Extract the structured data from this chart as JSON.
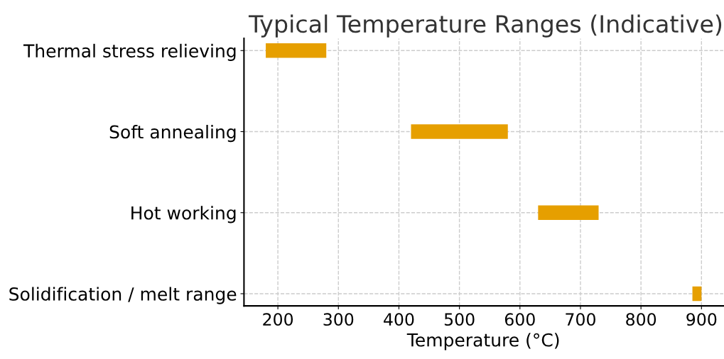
{
  "chart_data": {
    "type": "bar",
    "orientation": "horizontal",
    "title": "Typical Temperature Ranges (Indicative)",
    "xlabel": "Temperature (°C)",
    "categories": [
      "Thermal stress relieving",
      "Soft annealing",
      "Hot working",
      "Solidification / melt range"
    ],
    "base": [
      180,
      420,
      630,
      885
    ],
    "values": [
      100,
      160,
      100,
      15
    ],
    "color": "#e69f00",
    "xlim": [
      144,
      936
    ],
    "xticks": [
      200,
      300,
      400,
      500,
      600,
      700,
      800,
      900
    ],
    "grid": true
  }
}
